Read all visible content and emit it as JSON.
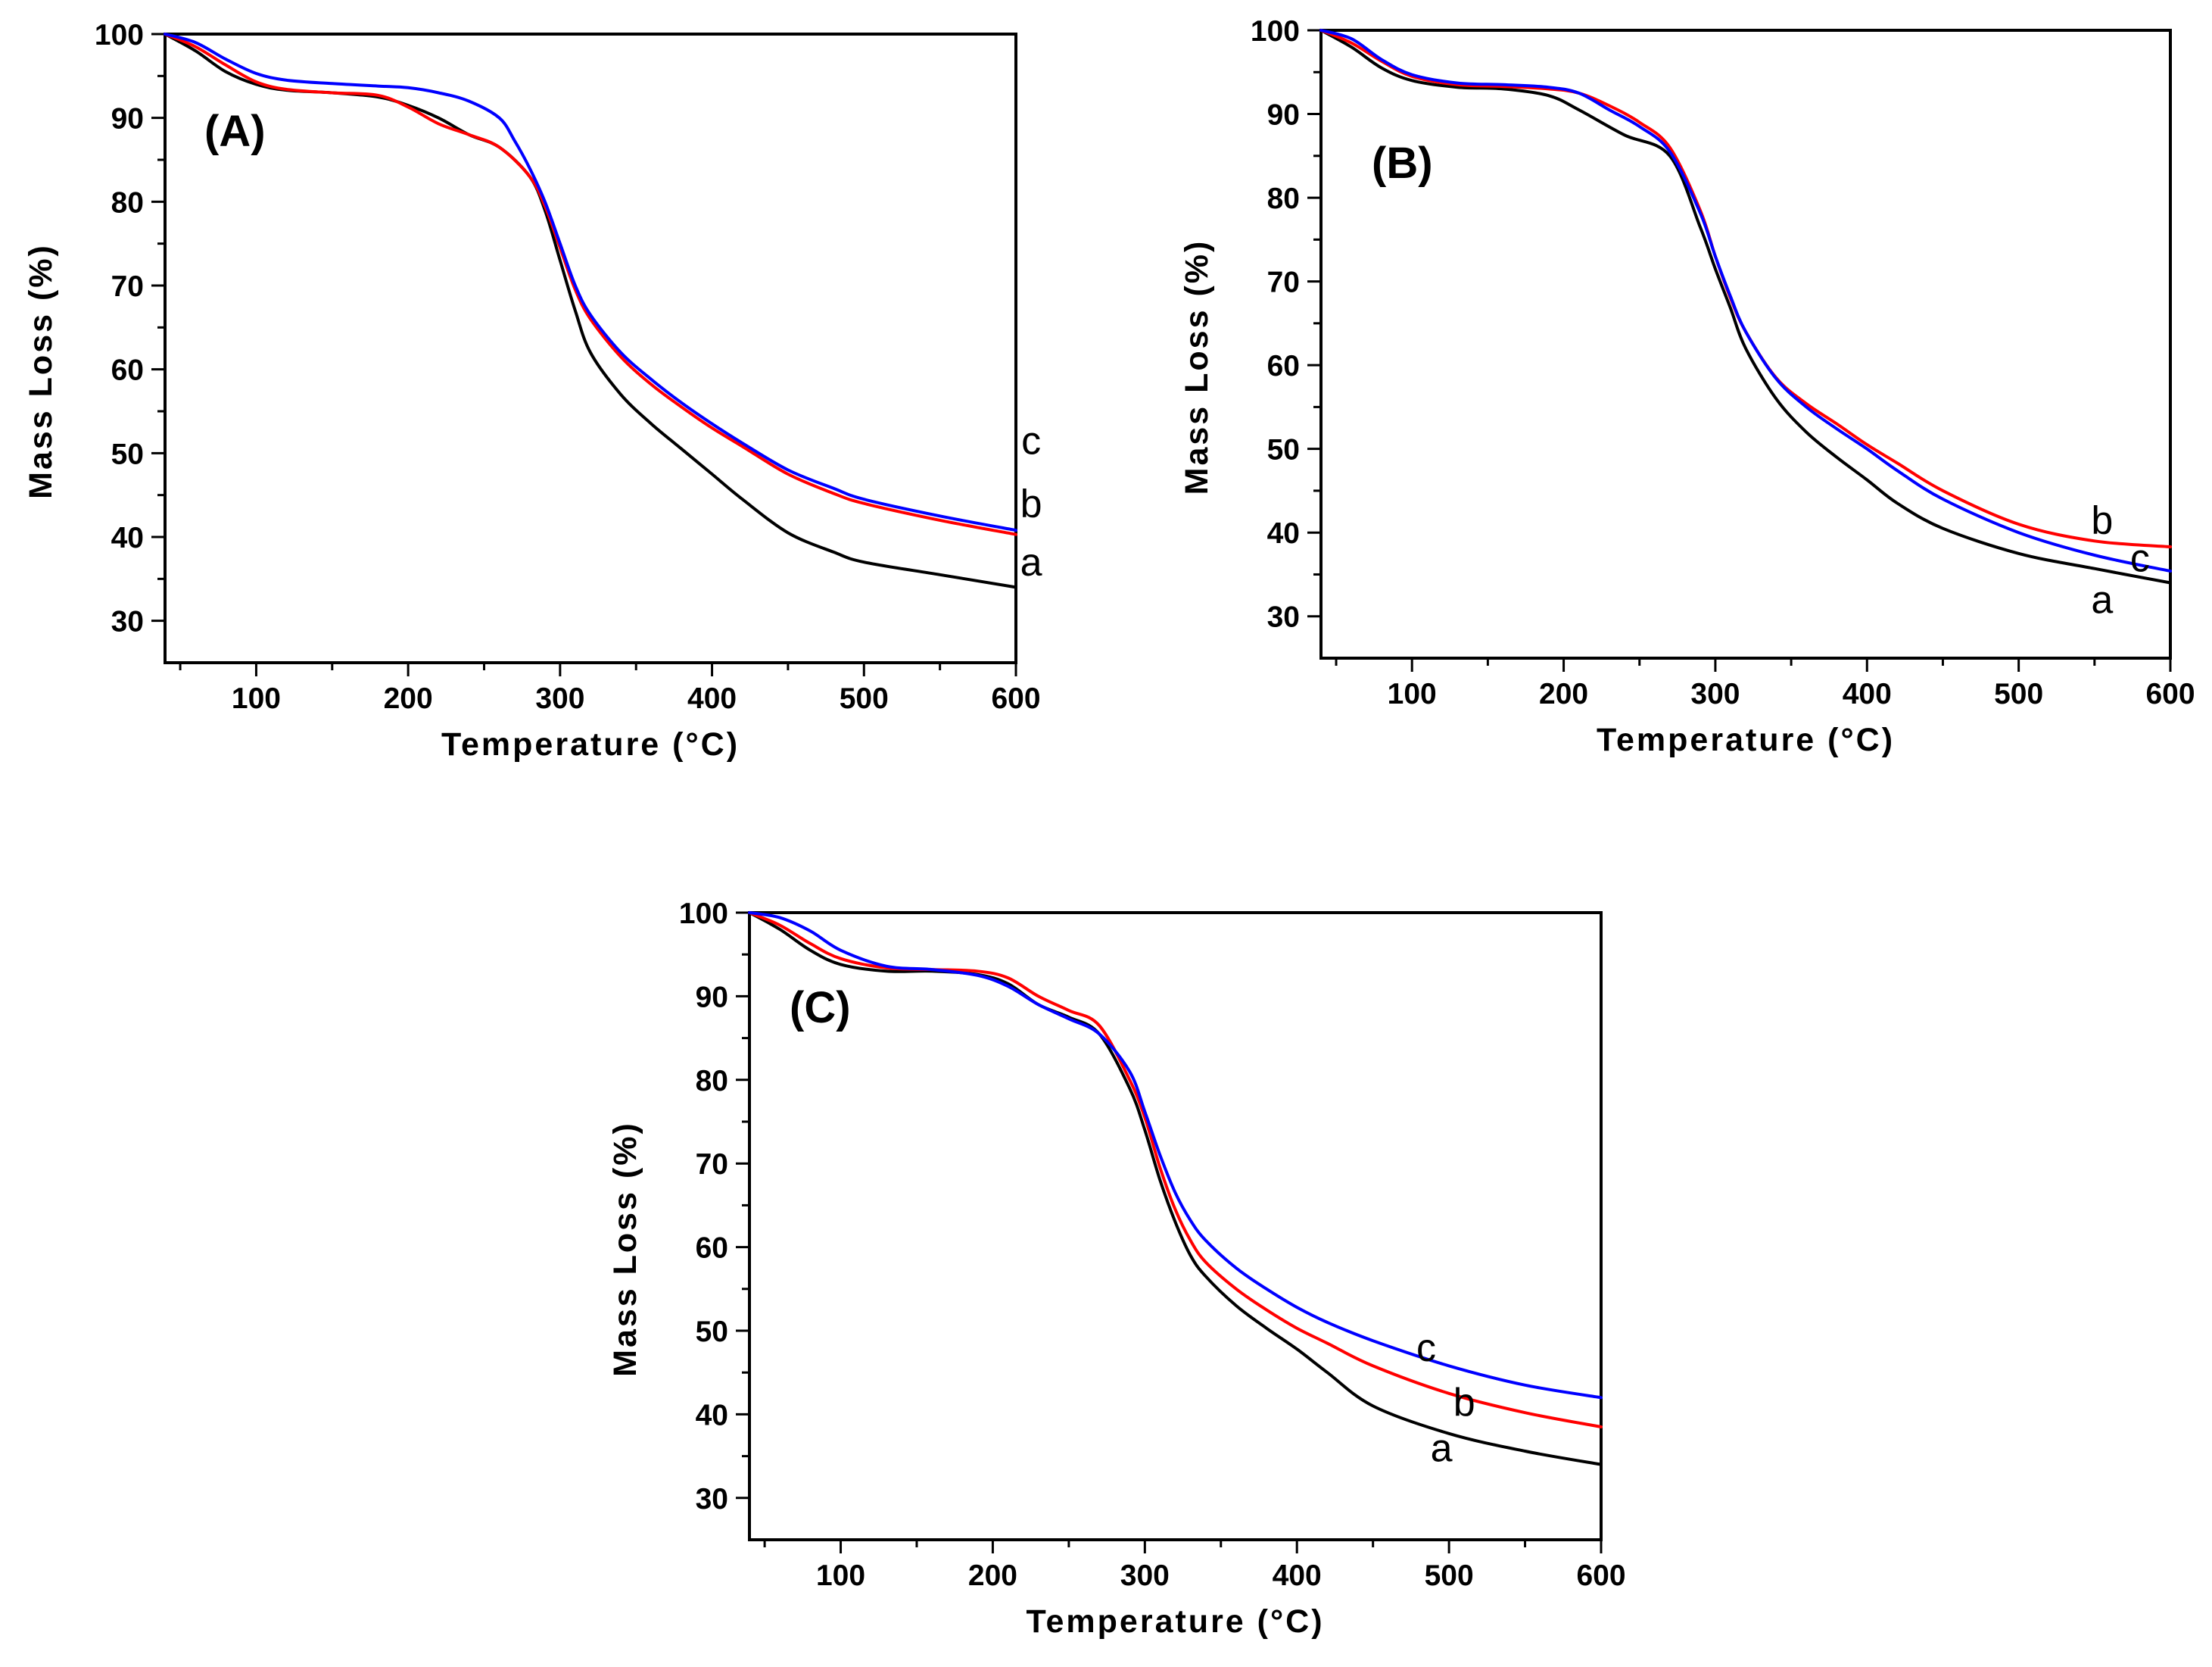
{
  "chart_data": [
    {
      "type": "line",
      "panel_label": "(A)",
      "xlabel": "Temperature (°C)",
      "ylabel": "Mass Loss (%)",
      "xlim": [
        40,
        600
      ],
      "ylim": [
        25,
        100
      ],
      "xticks": [
        100,
        200,
        300,
        400,
        500,
        600
      ],
      "yticks": [
        30,
        40,
        50,
        60,
        70,
        80,
        90,
        100
      ],
      "series": [
        {
          "name": "a",
          "color": "#000000",
          "label_at": [
            610,
            37
          ],
          "x": [
            40,
            60,
            80,
            100,
            120,
            150,
            180,
            200,
            220,
            240,
            260,
            280,
            290,
            300,
            310,
            320,
            340,
            360,
            380,
            400,
            420,
            450,
            480,
            500,
            550,
            600
          ],
          "y": [
            100,
            98,
            95.5,
            94,
            93.3,
            93,
            92.5,
            91.5,
            90,
            88,
            86.5,
            83,
            79,
            73,
            67,
            62,
            57,
            53.5,
            50.5,
            47.5,
            44.5,
            40.5,
            38.2,
            37,
            35.5,
            34
          ]
        },
        {
          "name": "b",
          "color": "#ff0000",
          "label_at": [
            610,
            44
          ],
          "x": [
            40,
            60,
            80,
            100,
            120,
            150,
            180,
            200,
            220,
            240,
            260,
            280,
            290,
            300,
            310,
            320,
            340,
            360,
            380,
            400,
            420,
            450,
            480,
            500,
            550,
            600
          ],
          "y": [
            100,
            98.5,
            96.3,
            94.3,
            93.4,
            93,
            92.7,
            91.3,
            89.3,
            88,
            86.5,
            83,
            79.5,
            74.5,
            69.5,
            66,
            61.5,
            58.2,
            55.5,
            53,
            50.8,
            47.5,
            45.2,
            44,
            42,
            40.3
          ]
        },
        {
          "name": "c",
          "color": "#0000ff",
          "label_at": [
            610,
            51.5
          ],
          "x": [
            40,
            60,
            80,
            100,
            120,
            150,
            180,
            200,
            220,
            240,
            260,
            270,
            280,
            290,
            300,
            310,
            320,
            340,
            360,
            380,
            400,
            420,
            450,
            480,
            500,
            550,
            600
          ],
          "y": [
            100,
            99,
            97,
            95.3,
            94.5,
            94.1,
            93.8,
            93.6,
            93,
            92,
            90,
            87.3,
            84,
            80,
            75,
            70,
            66.5,
            62,
            58.8,
            56,
            53.5,
            51.2,
            48,
            45.8,
            44.5,
            42.5,
            40.8
          ]
        }
      ]
    },
    {
      "type": "line",
      "panel_label": "(B)",
      "xlabel": "Temperature (°C)",
      "ylabel": "Mass Loss (%)",
      "xlim": [
        40,
        600
      ],
      "ylim": [
        25,
        100
      ],
      "xticks": [
        100,
        200,
        300,
        400,
        500,
        600
      ],
      "yticks": [
        30,
        40,
        50,
        60,
        70,
        80,
        90,
        100
      ],
      "series": [
        {
          "name": "a",
          "color": "#000000",
          "label_at": [
            555,
            32
          ],
          "x": [
            40,
            60,
            80,
            100,
            130,
            160,
            190,
            210,
            240,
            270,
            290,
            300,
            310,
            320,
            340,
            360,
            380,
            400,
            420,
            450,
            500,
            550,
            600
          ],
          "y": [
            100,
            98,
            95.5,
            94,
            93.2,
            93,
            92.2,
            90.5,
            87.5,
            85,
            76.5,
            71.5,
            66.8,
            62,
            56,
            52,
            49,
            46.3,
            43.5,
            40.5,
            37.5,
            35.7,
            34
          ]
        },
        {
          "name": "b",
          "color": "#ff0000",
          "label_at": [
            555,
            41.5
          ],
          "x": [
            40,
            60,
            80,
            100,
            130,
            160,
            190,
            210,
            230,
            250,
            270,
            290,
            300,
            310,
            320,
            340,
            360,
            380,
            400,
            420,
            450,
            500,
            550,
            600
          ],
          "y": [
            100,
            98.5,
            96.3,
            94.5,
            93.5,
            93.3,
            93,
            92.5,
            91,
            89,
            86,
            78.5,
            73,
            68,
            64,
            58.5,
            55.4,
            53,
            50.5,
            48.3,
            45,
            41,
            39,
            38.3
          ]
        },
        {
          "name": "c",
          "color": "#0000ff",
          "label_at": [
            580,
            37
          ],
          "x": [
            40,
            60,
            80,
            100,
            130,
            160,
            190,
            210,
            230,
            250,
            270,
            290,
            300,
            310,
            320,
            340,
            360,
            380,
            400,
            420,
            450,
            500,
            550,
            600
          ],
          "y": [
            100,
            99,
            96.5,
            94.7,
            93.7,
            93.5,
            93.2,
            92.5,
            90.5,
            88.5,
            85.5,
            78.2,
            73,
            68.2,
            64,
            58.4,
            55,
            52.4,
            50,
            47.4,
            44,
            40,
            37.3,
            35.4
          ]
        }
      ]
    },
    {
      "type": "line",
      "panel_label": "(C)",
      "xlabel": "Temperature (°C)",
      "ylabel": "Mass Loss (%)",
      "xlim": [
        40,
        600
      ],
      "ylim": [
        25,
        100
      ],
      "xticks": [
        100,
        200,
        300,
        400,
        500,
        600
      ],
      "yticks": [
        30,
        40,
        50,
        60,
        70,
        80,
        90,
        100
      ],
      "series": [
        {
          "name": "a",
          "color": "#000000",
          "label_at": [
            495,
            36
          ],
          "x": [
            40,
            60,
            80,
            100,
            130,
            160,
            190,
            210,
            230,
            250,
            270,
            290,
            300,
            310,
            320,
            330,
            340,
            360,
            380,
            400,
            420,
            450,
            500,
            550,
            600
          ],
          "y": [
            100,
            98,
            95.5,
            93.8,
            93,
            93,
            92.6,
            91.5,
            89,
            87.5,
            85.5,
            79,
            74,
            68,
            63,
            59,
            56.5,
            53,
            50.3,
            47.8,
            45,
            41,
            37.7,
            35.6,
            34
          ]
        },
        {
          "name": "b",
          "color": "#ff0000",
          "label_at": [
            510,
            41.5
          ],
          "x": [
            40,
            60,
            80,
            100,
            130,
            160,
            190,
            210,
            230,
            250,
            270,
            290,
            300,
            310,
            320,
            330,
            340,
            360,
            380,
            400,
            420,
            450,
            500,
            550,
            600
          ],
          "y": [
            100,
            98.5,
            96.3,
            94.5,
            93.4,
            93.2,
            93,
            92.2,
            90,
            88.3,
            86.5,
            80,
            75.5,
            69.5,
            64.5,
            60.8,
            58.2,
            55,
            52.5,
            50.3,
            48.5,
            45.8,
            42.5,
            40.2,
            38.5
          ]
        },
        {
          "name": "c",
          "color": "#0000ff",
          "label_at": [
            485,
            48
          ],
          "x": [
            40,
            60,
            80,
            100,
            130,
            160,
            190,
            210,
            230,
            250,
            270,
            290,
            300,
            310,
            320,
            330,
            340,
            360,
            380,
            400,
            420,
            450,
            500,
            550,
            600
          ],
          "y": [
            100,
            99.4,
            97.8,
            95.5,
            93.6,
            93.2,
            92.5,
            91.2,
            89,
            87.3,
            85.5,
            81,
            76.2,
            71,
            66.5,
            63.2,
            60.8,
            57.5,
            55,
            52.8,
            51,
            48.8,
            45.8,
            43.5,
            42
          ]
        }
      ]
    }
  ]
}
